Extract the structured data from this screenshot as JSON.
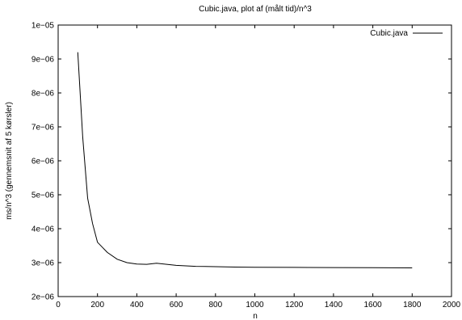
{
  "chart_data": {
    "type": "line",
    "title": "Cubic.java, plot af (målt tid)/n^3",
    "xlabel": "n",
    "ylabel": "ms/n^3 (gennemsnit af 5 kørsler)",
    "xlim": [
      0,
      2000
    ],
    "ylim": [
      2e-06,
      1e-05
    ],
    "x_ticks": [
      0,
      200,
      400,
      600,
      800,
      1000,
      1200,
      1400,
      1600,
      1800,
      2000
    ],
    "x_tick_labels": [
      "0",
      "200",
      "400",
      "600",
      "800",
      "1000",
      "1200",
      "1400",
      "1600",
      "1800",
      "2000"
    ],
    "y_ticks": [
      2e-06,
      3e-06,
      4e-06,
      5e-06,
      6e-06,
      7e-06,
      8e-06,
      9e-06,
      1e-05
    ],
    "y_tick_labels": [
      "2e−06",
      "3e−06",
      "4e−06",
      "5e−06",
      "6e−06",
      "7e−06",
      "8e−06",
      "9e−06",
      "1e−05"
    ],
    "grid": false,
    "legend": "top-right",
    "series": [
      {
        "name": "Cubic.java",
        "color": "#000000",
        "x": [
          100,
          125,
          150,
          175,
          200,
          250,
          300,
          350,
          400,
          450,
          500,
          600,
          700,
          800,
          900,
          1000,
          1200,
          1400,
          1600,
          1800
        ],
        "y": [
          9.2e-06,
          6.7e-06,
          4.9e-06,
          4.15e-06,
          3.6e-06,
          3.3e-06,
          3.1e-06,
          3e-06,
          2.96e-06,
          2.95e-06,
          2.98e-06,
          2.92e-06,
          2.89e-06,
          2.88e-06,
          2.87e-06,
          2.865e-06,
          2.86e-06,
          2.855e-06,
          2.85e-06,
          2.845e-06
        ]
      }
    ]
  }
}
